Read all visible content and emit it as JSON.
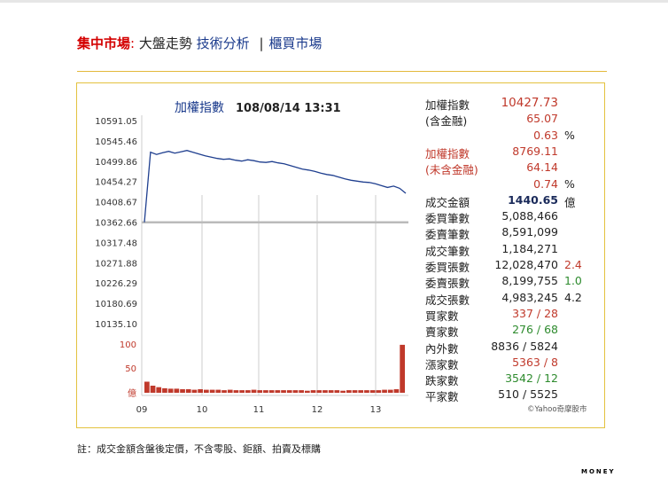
{
  "nav": {
    "market": "集中市場",
    "colon": ":",
    "current": "大盤走勢",
    "tech": "技術分析",
    "sep": "|",
    "otc": "櫃買市場"
  },
  "chart": {
    "title_prefix": "加權指數",
    "title_datetime": "108/08/14 13:31",
    "source": "©Yahoo奇摩股市",
    "volume_unit": "億"
  },
  "stats": [
    {
      "label": "加權指數",
      "value": "10427.73",
      "suffix": "",
      "label_color": "black",
      "value_color": "red"
    },
    {
      "label": "(含金融)",
      "value": "65.07",
      "suffix": "",
      "label_color": "black",
      "value_color": "red"
    },
    {
      "label": "",
      "value": "0.63",
      "suffix": "%",
      "label_color": "black",
      "value_color": "red"
    },
    {
      "label": "加權指數",
      "value": "8769.11",
      "suffix": "",
      "label_color": "red",
      "value_color": "red"
    },
    {
      "label": "(未含金融)",
      "value": "64.14",
      "suffix": "",
      "label_color": "red",
      "value_color": "red"
    },
    {
      "label": "",
      "value": "0.74",
      "suffix": "%",
      "label_color": "red",
      "value_color": "red"
    },
    {
      "label": "成交金額",
      "value": "1440.65",
      "suffix": "億",
      "label_color": "black",
      "value_color": "navy"
    },
    {
      "label": "委買筆數",
      "value": "5,088,466",
      "suffix": "",
      "label_color": "black",
      "value_color": "black"
    },
    {
      "label": "委賣筆數",
      "value": "8,591,099",
      "suffix": "",
      "label_color": "black",
      "value_color": "black"
    },
    {
      "label": "成交筆數",
      "value": "1,184,271",
      "suffix": "",
      "label_color": "black",
      "value_color": "black"
    },
    {
      "label": "委買張數",
      "value": "12,028,470",
      "suffix": "2.4",
      "label_color": "black",
      "value_color": "black",
      "suffix_color": "red"
    },
    {
      "label": "委賣張數",
      "value": "8,199,755",
      "suffix": "1.0",
      "label_color": "black",
      "value_color": "black",
      "suffix_color": "green"
    },
    {
      "label": "成交張數",
      "value": "4,983,245",
      "suffix": "4.2",
      "label_color": "black",
      "value_color": "black",
      "suffix_color": "black"
    },
    {
      "label": "買家數",
      "value": "337 / 28",
      "suffix": "",
      "label_color": "black",
      "value_color": "red"
    },
    {
      "label": "賣家數",
      "value": "276 / 68",
      "suffix": "",
      "label_color": "black",
      "value_color": "green"
    },
    {
      "label": "內外數",
      "value": "8836 / 5824",
      "suffix": "",
      "label_color": "black",
      "value_color": "black"
    },
    {
      "label": "漲家數",
      "value": "5363 / 8",
      "suffix": "",
      "label_color": "black",
      "value_color": "red"
    },
    {
      "label": "跌家數",
      "value": "3542 / 12",
      "suffix": "",
      "label_color": "black",
      "value_color": "green"
    },
    {
      "label": "平家數",
      "value": "510 / 5525",
      "suffix": "",
      "label_color": "black",
      "value_color": "black"
    }
  ],
  "note": "註：成交金額含盤後定價，不含零股、鉅額、拍賣及標購",
  "footer_logo": "MONEY",
  "colors": {
    "index_line": "#1f3f8f",
    "reference_line": "#bbbbbb",
    "volume_bar": "#c0392b"
  },
  "chart_data": {
    "type": "line",
    "series": [
      {
        "values": [
          10362.66,
          10520,
          10515,
          10519,
          10522,
          10518,
          10521,
          10524,
          10520,
          10516,
          10512,
          10509,
          10506,
          10504,
          10505,
          10502,
          10500,
          10503,
          10501,
          10498,
          10497,
          10499,
          10496,
          10494,
          10490,
          10486,
          10482,
          10480,
          10477,
          10473,
          10470,
          10468,
          10464,
          10460,
          10457,
          10455,
          10453,
          10452,
          10449,
          10445,
          10441,
          10444,
          10439,
          10427.73
        ]
      }
    ],
    "x_ticks": [
      "09",
      "10",
      "11",
      "12",
      "13"
    ],
    "y_ticks": [
      "10591.05",
      "10545.46",
      "10499.86",
      "10454.27",
      "10408.67",
      "10362.66",
      "10317.48",
      "10271.88",
      "10226.29",
      "10180.69",
      "10135.10"
    ],
    "ylim": [
      10135.1,
      10591.05
    ],
    "reference_value": 10362.66,
    "volume": {
      "y_ticks": [
        "100",
        "50",
        "億"
      ],
      "ylim": [
        0,
        100
      ],
      "values": [
        22,
        14,
        11,
        9,
        8,
        8,
        7,
        7,
        6,
        7,
        6,
        6,
        6,
        5,
        6,
        5,
        5,
        5,
        6,
        5,
        5,
        5,
        5,
        5,
        5,
        5,
        5,
        4,
        5,
        5,
        5,
        5,
        5,
        4,
        5,
        5,
        5,
        5,
        5,
        5,
        6,
        6,
        7,
        95
      ]
    }
  }
}
